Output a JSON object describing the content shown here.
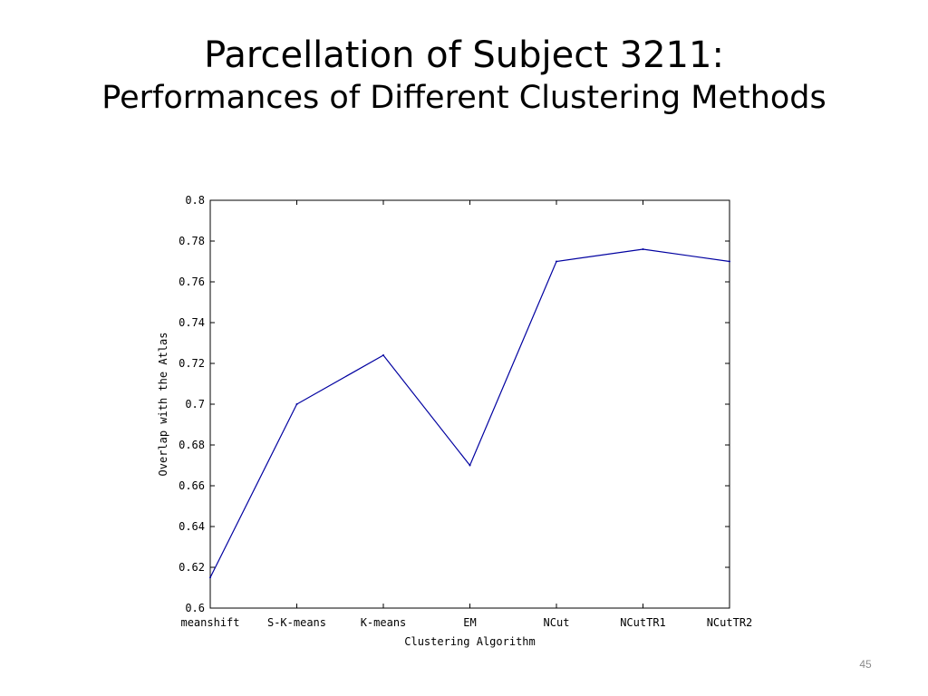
{
  "slide": {
    "title_line1": "Parcellation of Subject 3211:",
    "title_line2": "Performances of Different Clustering Methods",
    "page_number": "45"
  },
  "chart_data": {
    "type": "line",
    "title": "",
    "xlabel": "Clustering Algorithm",
    "ylabel": "Overlap with the Atlas",
    "categories": [
      "meanshift",
      "S-K-means",
      "K-means",
      "EM",
      "NCut",
      "NCutTR1",
      "NCutTR2"
    ],
    "series": [
      {
        "values": [
          0.615,
          0.7,
          0.724,
          0.67,
          0.77,
          0.776,
          0.77
        ]
      }
    ],
    "ylim": [
      0.6,
      0.8
    ],
    "yticks": [
      0.6,
      0.62,
      0.64,
      0.66,
      0.68,
      0.7,
      0.72,
      0.74,
      0.76,
      0.78,
      0.8
    ],
    "ytick_labels": [
      "0.6",
      "0.62",
      "0.64",
      "0.66",
      "0.68",
      "0.7",
      "0.72",
      "0.74",
      "0.76",
      "0.78",
      "0.8"
    ],
    "grid": false,
    "legend": false,
    "line_color": "#0000a0"
  }
}
